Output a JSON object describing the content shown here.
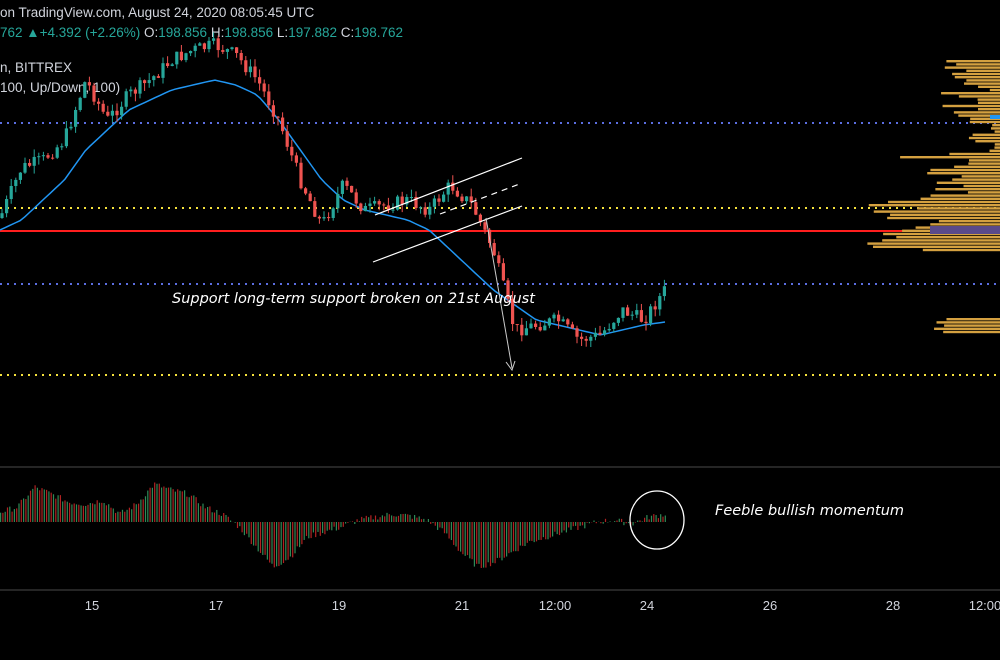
{
  "header": {
    "line1": "on TradingView.com, August 24, 2020 08:05:45 UTC",
    "price_partial": "762",
    "change": "▲+4.392 (+2.26%)",
    "open_label": "O:",
    "open": "198.856",
    "high_label": "H:",
    "high": "198.856",
    "low_label": "L:",
    "low": "197.882",
    "close_label": "C:",
    "close": "198.762"
  },
  "symbol_line": "n, BITTREX",
  "indicator_line": "100, Up/Down, 100)",
  "annotations": {
    "support": "Support long-term support broken on 21st August",
    "momentum": "Feeble bullish momentum"
  },
  "colors": {
    "up": "#26a69a",
    "down": "#ef5350",
    "ma": "#2196f3",
    "support_line": "#ff1e1e",
    "dotted_blue": "#5b6ee1",
    "dotted_yellow": "#f5e23c",
    "volume_profile": "#d4a040",
    "channel": "#ffffff"
  },
  "chart_data": {
    "type": "candlestick",
    "x_ticks": [
      "15",
      "17",
      "19",
      "21",
      "12:00",
      "24",
      "26",
      "28",
      "12:00"
    ],
    "horizontal_levels": {
      "support_red": "solid",
      "upper_blue": "dotted",
      "mid_yellow": "dotted",
      "lower_blue": "dotted",
      "bottom_yellow": "dotted"
    },
    "close_path": [
      218,
      168,
      160,
      140,
      80,
      120,
      95,
      80,
      60,
      50,
      45,
      55,
      80,
      120,
      180,
      225,
      185,
      210,
      205,
      200,
      210,
      185,
      205,
      250,
      330,
      325,
      320,
      340,
      335,
      310,
      320,
      290
    ],
    "ma_path": [
      230,
      220,
      200,
      180,
      150,
      130,
      110,
      100,
      90,
      85,
      80,
      85,
      95,
      120,
      150,
      180,
      200,
      210,
      215,
      220,
      230,
      250,
      270,
      290,
      305,
      320,
      325,
      330,
      335,
      330,
      325,
      322
    ],
    "oscillator": [
      10,
      15,
      35,
      28,
      20,
      18,
      22,
      8,
      18,
      38,
      32,
      28,
      15,
      8,
      -5,
      -25,
      -45,
      -35,
      -15,
      -10,
      -5,
      2,
      5,
      8,
      6,
      2,
      -10,
      -30,
      -45,
      -40,
      -30,
      -20,
      -15,
      -10,
      -5,
      0,
      2,
      -2,
      5,
      8
    ]
  }
}
